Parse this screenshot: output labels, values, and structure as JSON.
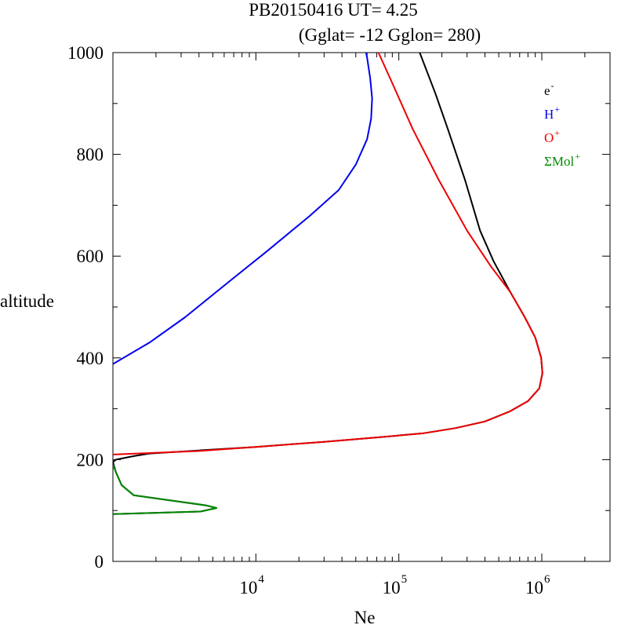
{
  "chart_data": {
    "type": "line",
    "title": "PB20150416   UT=  4.25",
    "subtitle": "(Gglat= -12   Gglon=  280)",
    "xlabel": "Ne",
    "ylabel": "altitude",
    "xscale": "log",
    "xlim": [
      1000,
      3000000
    ],
    "ylim": [
      0,
      1000
    ],
    "x_ticks": [
      {
        "value": 10000,
        "base": "10",
        "exp": "4"
      },
      {
        "value": 100000,
        "base": "10",
        "exp": "5"
      },
      {
        "value": 1000000,
        "base": "10",
        "exp": "6"
      }
    ],
    "y_ticks": [
      {
        "value": 0,
        "label": "0"
      },
      {
        "value": 200,
        "label": "200"
      },
      {
        "value": 400,
        "label": "400"
      },
      {
        "value": 600,
        "label": "600"
      },
      {
        "value": 800,
        "label": "800"
      },
      {
        "value": 1000,
        "label": "1000"
      }
    ],
    "grid": false,
    "legend_position": "top-right",
    "series": [
      {
        "name": "e-",
        "legend_base": "e",
        "legend_sup": "-",
        "color": "#000000",
        "points": [
          [
            1000,
            93
          ],
          [
            4100,
            98
          ],
          [
            5300,
            105
          ],
          [
            4500,
            110
          ],
          [
            1400,
            130
          ],
          [
            1150,
            150
          ],
          [
            1050,
            175
          ],
          [
            1000,
            195
          ],
          [
            1050,
            200
          ],
          [
            1400,
            207
          ],
          [
            1800,
            212
          ],
          [
            4000,
            218
          ],
          [
            10000,
            225
          ],
          [
            30000,
            235
          ],
          [
            80000,
            245
          ],
          [
            150000,
            252
          ],
          [
            250000,
            262
          ],
          [
            400000,
            275
          ],
          [
            600000,
            295
          ],
          [
            800000,
            315
          ],
          [
            960000,
            340
          ],
          [
            1010000,
            370
          ],
          [
            990000,
            400
          ],
          [
            900000,
            440
          ],
          [
            760000,
            480
          ],
          [
            600000,
            530
          ],
          [
            460000,
            590
          ],
          [
            370000,
            650
          ],
          [
            290000,
            750
          ],
          [
            220000,
            850
          ],
          [
            180000,
            920
          ],
          [
            140000,
            1000
          ]
        ]
      },
      {
        "name": "H+",
        "legend_base": "H",
        "legend_sup": "+",
        "color": "#0000ee",
        "points": [
          [
            1000,
            388
          ],
          [
            1800,
            430
          ],
          [
            3200,
            480
          ],
          [
            6500,
            550
          ],
          [
            12000,
            610
          ],
          [
            24000,
            680
          ],
          [
            38000,
            730
          ],
          [
            50000,
            780
          ],
          [
            60000,
            830
          ],
          [
            64000,
            870
          ],
          [
            65000,
            910
          ],
          [
            63000,
            950
          ],
          [
            60000,
            990
          ],
          [
            59000,
            1000
          ]
        ]
      },
      {
        "name": "O+",
        "legend_base": "O",
        "legend_sup": "+",
        "color": "#ee0000",
        "points": [
          [
            1000,
            210
          ],
          [
            4000,
            217
          ],
          [
            10000,
            225
          ],
          [
            30000,
            235
          ],
          [
            80000,
            245
          ],
          [
            150000,
            252
          ],
          [
            250000,
            262
          ],
          [
            400000,
            275
          ],
          [
            600000,
            295
          ],
          [
            800000,
            315
          ],
          [
            960000,
            340
          ],
          [
            1010000,
            370
          ],
          [
            990000,
            400
          ],
          [
            900000,
            440
          ],
          [
            760000,
            480
          ],
          [
            600000,
            530
          ],
          [
            440000,
            580
          ],
          [
            300000,
            650
          ],
          [
            190000,
            750
          ],
          [
            125000,
            850
          ],
          [
            90000,
            940
          ],
          [
            72000,
            1000
          ]
        ]
      },
      {
        "name": "ΣMol+",
        "legend_base": "ΣMol",
        "legend_sup": "+",
        "color": "#008800",
        "points": [
          [
            1000,
            93
          ],
          [
            4100,
            98
          ],
          [
            5300,
            105
          ],
          [
            4500,
            110
          ],
          [
            1400,
            130
          ],
          [
            1150,
            150
          ],
          [
            1050,
            175
          ],
          [
            1000,
            190
          ]
        ]
      }
    ]
  }
}
